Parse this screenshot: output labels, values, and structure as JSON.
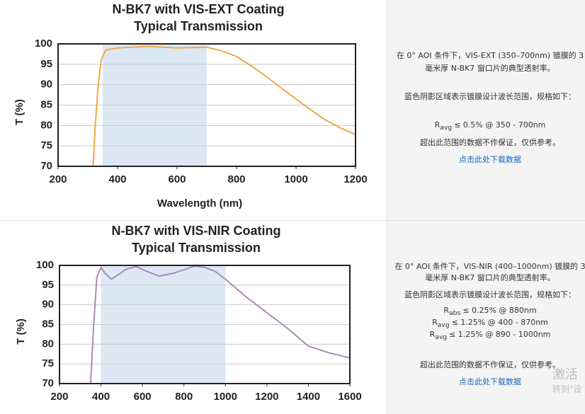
{
  "chart_data": [
    {
      "type": "line",
      "title": "N-BK7 with VIS-EXT Coating",
      "subtitle": "Typical Transmission",
      "xlabel": "Wavelength (nm)",
      "ylabel": "T (%)",
      "x": [
        318,
        325,
        335,
        345,
        360,
        400,
        500,
        600,
        700,
        750,
        800,
        850,
        900,
        950,
        1000,
        1050,
        1100,
        1150,
        1200
      ],
      "values": [
        70,
        80,
        90,
        96,
        98.5,
        99,
        99.4,
        99,
        99.2,
        98.3,
        96.9,
        94.6,
        92,
        89.2,
        86.5,
        83.8,
        81.3,
        79.4,
        77.8
      ],
      "color": "#f0a848",
      "shaded_range": [
        350,
        700
      ],
      "shade_color": "#dce8f4",
      "xlim": [
        200,
        1200
      ],
      "xticks": [
        200,
        400,
        600,
        800,
        1000,
        1200
      ],
      "ylim": [
        70,
        100
      ],
      "yticks": [
        70,
        75,
        80,
        85,
        90,
        95,
        100
      ],
      "grid": true
    },
    {
      "type": "line",
      "title": "N-BK7 with VIS-NIR Coating",
      "subtitle": "Typical Transmission",
      "ylabel": "T (%)",
      "x": [
        350,
        365,
        380,
        400,
        420,
        450,
        480,
        520,
        570,
        620,
        680,
        750,
        850,
        900,
        950,
        1000,
        1100,
        1200,
        1300,
        1400,
        1500,
        1600
      ],
      "values": [
        70,
        85,
        97,
        99.5,
        98,
        96.5,
        97.5,
        99,
        99.7,
        98.5,
        97.3,
        98,
        99.8,
        99.5,
        98.5,
        96.5,
        92,
        88,
        84,
        79.5,
        77.8,
        76.5
      ],
      "color": "#a98bb5",
      "shaded_range": [
        400,
        1000
      ],
      "shade_color": "#dce8f4",
      "xlim": [
        200,
        1600
      ],
      "xticks": [
        200,
        400,
        600,
        800,
        1000,
        1200,
        1400,
        1600
      ],
      "ylim": [
        70,
        100
      ],
      "yticks": [
        70,
        75,
        80,
        85,
        90,
        95,
        100
      ],
      "grid": true
    }
  ],
  "notes": [
    {
      "intro": [
        "在 0° AOI 条件下，VIS-EXT (350–700nm) 镀膜的 3",
        "毫米厚 N-BK7 窗口片的典型透射率。"
      ],
      "shading": "蓝色阴影区域表示镀膜设计波长范围，规格如下：",
      "specs": [
        {
          "symbol": "R",
          "sub": "avg",
          "text": "≤ 0.5% @ 350 - 700nm"
        }
      ],
      "disclaimer": "超出此范围的数据不作保证，仅供参考。",
      "link": "点击此处下载数据"
    },
    {
      "intro": [
        "在 0° AOI 条件下，VIS-NIR (400–1000nm) 镀膜的 3",
        "毫米厚 N-BK7 窗口片的典型透射率。"
      ],
      "shading": "蓝色阴影区域表示镀膜设计波长范围，规格如下：",
      "specs": [
        {
          "symbol": "R",
          "sub": "abs",
          "text": "≤ 0.25% @ 880nm"
        },
        {
          "symbol": "R",
          "sub": "avg",
          "text": "≤ 1.25% @ 400 - 870nm"
        },
        {
          "symbol": "R",
          "sub": "avg",
          "text": "≤ 1.25% @ 890 - 1000nm"
        }
      ],
      "disclaimer": "超出此范围的数据不作保证，仅供参考。",
      "link": "点击此处下载数据"
    }
  ],
  "watermark": [
    "激活",
    "转到\"设"
  ]
}
